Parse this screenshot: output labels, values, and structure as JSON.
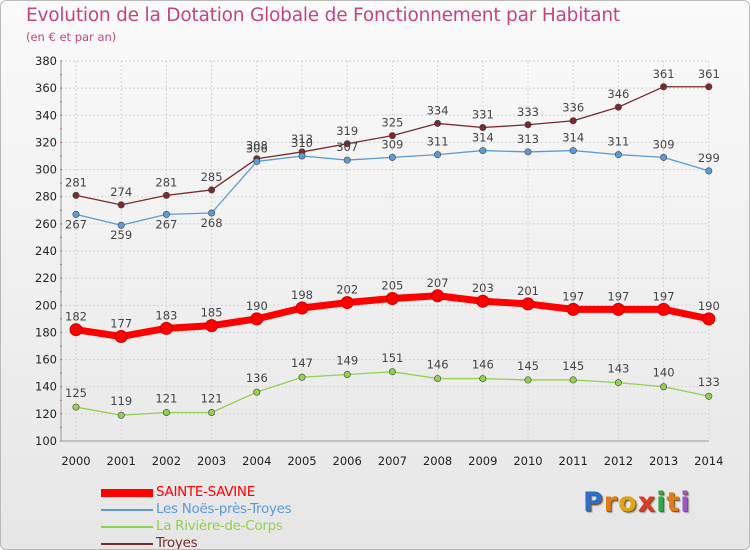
{
  "title": "Evolution de la Dotation Globale de Fonctionnement par Habitant",
  "subtitle": "(en € et par an)",
  "logo": {
    "letters": [
      "P",
      "r",
      "o",
      "x",
      "i",
      "t",
      "i"
    ],
    "colors": [
      "#2a6fc9",
      "#e07b1a",
      "#e0a41a",
      "#d93a2b",
      "#2fa84f",
      "#e07b1a",
      "#9a57c6"
    ]
  },
  "chart_data": {
    "type": "line",
    "title": "Evolution de la Dotation Globale de Fonctionnement par Habitant",
    "subtitle": "(en € et par an)",
    "x": [
      "2000",
      "2001",
      "2002",
      "2003",
      "2004",
      "2005",
      "2006",
      "2007",
      "2008",
      "2009",
      "2010",
      "2011",
      "2012",
      "2013",
      "2014"
    ],
    "ylim": [
      100,
      380
    ],
    "yticks": [
      "100",
      "120",
      "140",
      "160",
      "180",
      "200",
      "220",
      "240",
      "260",
      "280",
      "300",
      "320",
      "340",
      "360",
      "380"
    ],
    "ytick_values": [
      100,
      120,
      140,
      160,
      180,
      200,
      220,
      240,
      260,
      280,
      300,
      320,
      340,
      360,
      380
    ],
    "grid": true,
    "legend_position": "bottom-left",
    "series": [
      {
        "name": "Troyes",
        "color": "#7a2a2a",
        "values": [
          281,
          274,
          281,
          285,
          308,
          313,
          319,
          325,
          334,
          331,
          333,
          336,
          346,
          361,
          361
        ],
        "labels": [
          "281",
          "274",
          "281",
          "285",
          "308",
          "313",
          "319",
          "325",
          "334",
          "331",
          "333",
          "336",
          "346",
          "361",
          "361"
        ]
      },
      {
        "name": "Les Noës-près-Troyes",
        "color": "#5b9bd5",
        "values": [
          267,
          259,
          267,
          268,
          306,
          310,
          307,
          309,
          311,
          314,
          313,
          314,
          311,
          309,
          299
        ],
        "labels": [
          "267",
          "259",
          "267",
          "268",
          "306",
          "310",
          "307",
          "309",
          "311",
          "314",
          "313",
          "314",
          "311",
          "309",
          "299"
        ]
      },
      {
        "name": "La Rivière-de-Corps",
        "color": "#92d050",
        "values": [
          125,
          119,
          121,
          121,
          136,
          147,
          149,
          151,
          146,
          146,
          145,
          145,
          143,
          140,
          133
        ],
        "labels": [
          "125",
          "119",
          "121",
          "121",
          "136",
          "147",
          "149",
          "151",
          "146",
          "146",
          "145",
          "145",
          "143",
          "140",
          "133"
        ]
      },
      {
        "name": "SAINTE-SAVINE",
        "color": "#ff0000",
        "values": [
          182,
          177,
          183,
          185,
          190,
          198,
          202,
          205,
          207,
          203,
          201,
          197,
          197,
          197,
          190
        ],
        "labels": [
          "182",
          "177",
          "183",
          "185",
          "190",
          "198",
          "202",
          "205",
          "207",
          "203",
          "201",
          "197",
          "197",
          "197",
          "190"
        ]
      }
    ],
    "legend": [
      {
        "name": "SAINTE-SAVINE",
        "color": "#ff0000",
        "text_color": "#ff0000",
        "thick": true
      },
      {
        "name": "Les Noës-près-Troyes",
        "color": "#5b9bd5",
        "text_color": "#5b9bd5",
        "thick": false
      },
      {
        "name": "La Rivière-de-Corps",
        "color": "#92d050",
        "text_color": "#92d050",
        "thick": false
      },
      {
        "name": "Troyes",
        "color": "#7a2a2a",
        "text_color": "#7a2a2a",
        "thick": false
      }
    ]
  }
}
